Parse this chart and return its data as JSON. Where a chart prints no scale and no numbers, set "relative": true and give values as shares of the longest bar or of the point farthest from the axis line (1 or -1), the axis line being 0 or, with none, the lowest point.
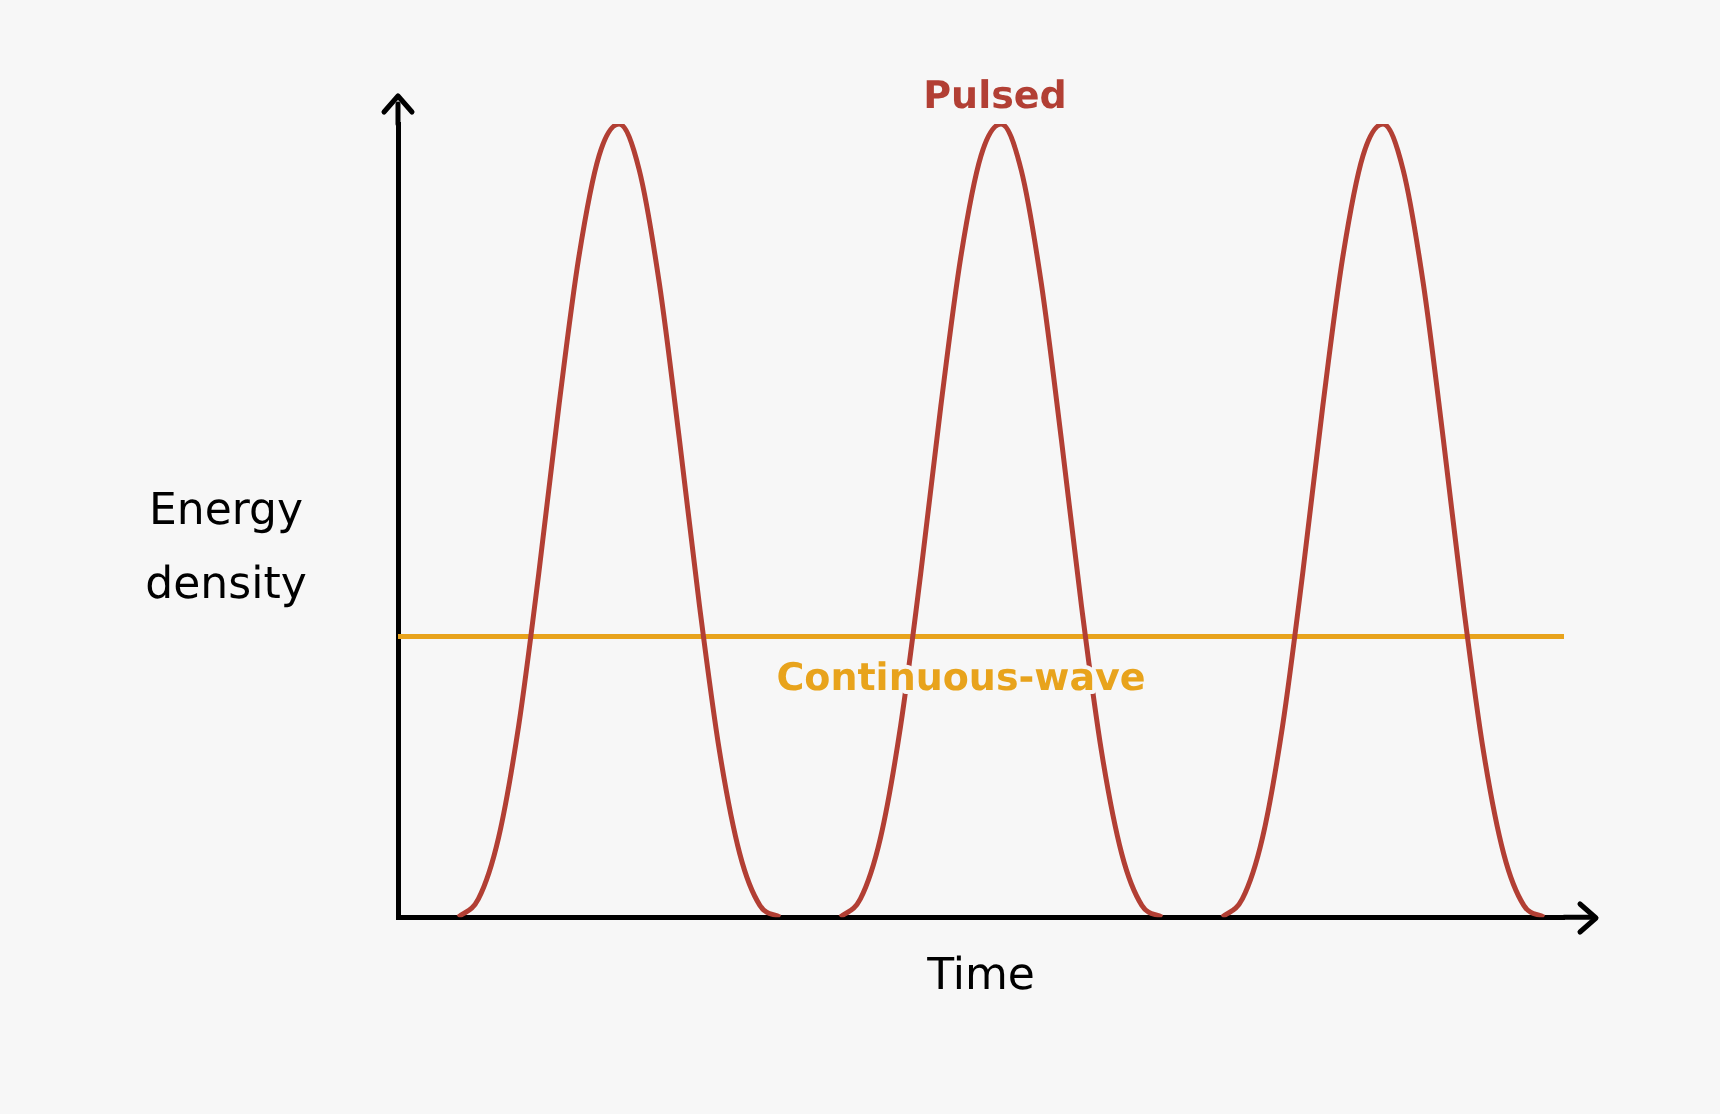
{
  "chart_data": {
    "type": "line",
    "relative": true,
    "xlabel": "Time",
    "ylabel": "Energy density",
    "legend": false,
    "grid": false,
    "marker": "none",
    "line_style": "solid",
    "categories": [
      null,
      null,
      null,
      null,
      null,
      null,
      null,
      null,
      null,
      null,
      null,
      null,
      null,
      null,
      null,
      null,
      null,
      null,
      null,
      null,
      null,
      null,
      null,
      null,
      null,
      null,
      null,
      null,
      null,
      null,
      null,
      null,
      null,
      null,
      null,
      null,
      null,
      null,
      null,
      null,
      null,
      null,
      null,
      null,
      null,
      null,
      null,
      null,
      null,
      null,
      null,
      null,
      null,
      null,
      null,
      null,
      null,
      null,
      null
    ],
    "series": [
      {
        "name": "Pulsed",
        "color": "#b23f34",
        "values": [
          null,
          null,
          null,
          0,
          0.023,
          0.1,
          0.241,
          0.433,
          0.644,
          0.833,
          0.96,
          1,
          0.942,
          0.799,
          0.602,
          0.392,
          0.208,
          0.08,
          0.015,
          0,
          null,
          null,
          0,
          0.023,
          0.1,
          0.241,
          0.433,
          0.644,
          0.833,
          0.96,
          1,
          0.942,
          0.799,
          0.602,
          0.392,
          0.208,
          0.08,
          0.015,
          0,
          null,
          null,
          0,
          0.023,
          0.1,
          0.241,
          0.433,
          0.644,
          0.833,
          0.96,
          1,
          0.942,
          0.799,
          0.602,
          0.392,
          0.208,
          0.08,
          0.015,
          0,
          null
        ]
      },
      {
        "name": "Continuous-wave",
        "color": "#e8a31c",
        "values": [
          0.354,
          0.354,
          0.354,
          0.354,
          0.354,
          0.354,
          0.354,
          0.354,
          0.354,
          0.354,
          0.354,
          0.354,
          0.354,
          0.354,
          0.354,
          0.354,
          0.354,
          0.354,
          0.354,
          0.354,
          0.354,
          0.354,
          0.354,
          0.354,
          0.354,
          0.354,
          0.354,
          0.354,
          0.354,
          0.354,
          0.354,
          0.354,
          0.354,
          0.354,
          0.354,
          0.354,
          0.354,
          0.354,
          0.354,
          0.354,
          0.354,
          0.354,
          0.354,
          0.354,
          0.354,
          0.354,
          0.354,
          0.354,
          0.354,
          0.354,
          0.354,
          0.354,
          0.354,
          0.354,
          0.354,
          0.354,
          0.354,
          0.354,
          0.354
        ]
      }
    ]
  }
}
